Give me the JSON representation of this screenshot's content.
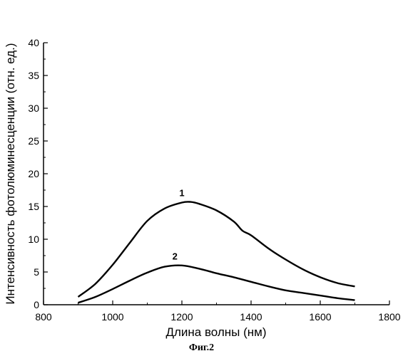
{
  "chart_data": {
    "type": "line",
    "xlabel": "Длина волны (нм)",
    "ylabel": "Интенсивность фотолюминесценции (отн. ед.)",
    "xlim": [
      800,
      1800
    ],
    "ylim": [
      0,
      40
    ],
    "xticks": [
      800,
      1000,
      1200,
      1400,
      1600,
      1800
    ],
    "yticks": [
      0,
      5,
      10,
      15,
      20,
      25,
      30,
      35,
      40
    ],
    "grid": false,
    "legend": "none",
    "series": [
      {
        "name": "1",
        "color": "#000000",
        "x": [
          900,
          950,
          1000,
          1050,
          1100,
          1150,
          1200,
          1225,
          1250,
          1300,
          1350,
          1375,
          1400,
          1450,
          1500,
          1550,
          1600,
          1650,
          1700
        ],
        "y": [
          1.2,
          3.2,
          6.1,
          9.5,
          12.8,
          14.7,
          15.6,
          15.7,
          15.4,
          14.4,
          12.7,
          11.3,
          10.6,
          8.6,
          6.9,
          5.4,
          4.2,
          3.3,
          2.8
        ]
      },
      {
        "name": "2",
        "color": "#000000",
        "x": [
          900,
          950,
          1000,
          1050,
          1100,
          1150,
          1200,
          1250,
          1300,
          1350,
          1400,
          1450,
          1500,
          1550,
          1600,
          1650,
          1700
        ],
        "y": [
          0.3,
          1.2,
          2.4,
          3.7,
          4.9,
          5.8,
          6.0,
          5.5,
          4.8,
          4.2,
          3.5,
          2.8,
          2.2,
          1.8,
          1.4,
          1.0,
          0.7
        ]
      }
    ],
    "annotations": [
      {
        "text": "1",
        "x": 1200,
        "y": 16.6
      },
      {
        "text": "2",
        "x": 1180,
        "y": 6.9
      }
    ]
  },
  "caption": "Фиг.2"
}
